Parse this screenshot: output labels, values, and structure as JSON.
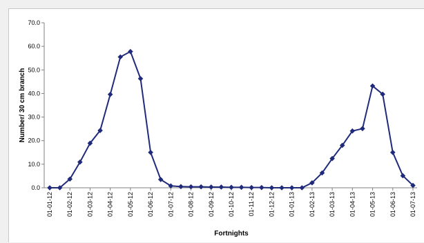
{
  "chart_data": {
    "type": "line",
    "title": "",
    "xlabel": "Fortnights",
    "ylabel": "Number/ 30 cm branch",
    "ylim": [
      0,
      70
    ],
    "yticks": [
      "0.0",
      "10.0",
      "20.0",
      "30.0",
      "40.0",
      "50.0",
      "60.0",
      "70.0"
    ],
    "grid": false,
    "legend": "none",
    "x_tick_labels": [
      "01-01-12",
      "01-02-12",
      "01-03-12",
      "01-04-12",
      "01-05-12",
      "01-06-12",
      "01-07-12",
      "01-08-12",
      "01-09-12",
      "01-10-12",
      "01-11-12",
      "01-12-12",
      "01-01-13",
      "01-02-13",
      "01-03-13",
      "01-04-13",
      "01-05-13",
      "01-06-13",
      "01-07-13"
    ],
    "series": [
      {
        "color": "#1f2a7a",
        "marker": "diamond",
        "values": [
          0.0,
          0.0,
          3.7,
          10.9,
          18.9,
          24.3,
          39.6,
          55.5,
          57.8,
          46.3,
          15.0,
          3.5,
          0.8,
          0.5,
          0.4,
          0.4,
          0.3,
          0.3,
          0.2,
          0.2,
          0.1,
          0.1,
          0.0,
          0.0,
          0.0,
          0.0,
          2.1,
          6.3,
          12.4,
          18.0,
          24.1,
          25.1,
          43.2,
          39.7,
          15.0,
          5.1,
          1.0
        ]
      }
    ]
  }
}
